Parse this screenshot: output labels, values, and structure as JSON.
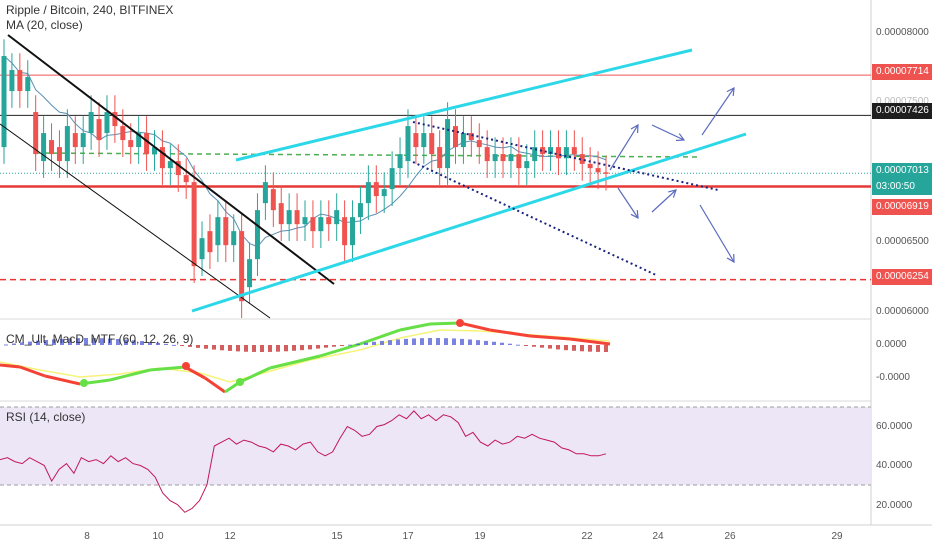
{
  "header": {
    "title": "Ripple / Bitcoin, 240, BITFINEX",
    "ma_label": "MA (20, close)"
  },
  "macd_pane": {
    "label": "CM_Ult_MacD_MTF (60, 12, 26, 9)"
  },
  "rsi_pane": {
    "label": "RSI (14, close)"
  },
  "colors": {
    "candle_up": "#26a69a",
    "candle_down": "#ef5350",
    "channel": "#2cd8e8",
    "resistance": "#ef5350",
    "support_dashed": "#e53935",
    "ma_line": "#5b8fb4",
    "macd_up": "#66e046",
    "macd_down": "#f44336",
    "signal": "#f5f37a",
    "rsi_line": "#c2185b",
    "rsi_band": "#ede7f6"
  },
  "price_axis": {
    "ticks": [
      "0.00008000",
      "0.00007500",
      "0.00006500",
      "0.00006000"
    ],
    "tags": [
      {
        "value": "0.00007714",
        "kind": "red-line"
      },
      {
        "value": "0.00007426",
        "kind": "black-line"
      },
      {
        "value": "0.00007013",
        "kind": "last-price"
      },
      {
        "value": "03:00:50",
        "kind": "countdown"
      },
      {
        "value": "0.00006919",
        "kind": "red-line"
      },
      {
        "value": "0.00006254",
        "kind": "red-line"
      }
    ]
  },
  "macd_axis": {
    "ticks": [
      "0.0000",
      "-0.0000"
    ]
  },
  "rsi_axis": {
    "ticks": [
      "60.0000",
      "40.0000",
      "20.0000"
    ]
  },
  "time_axis": {
    "ticks": [
      "8",
      "10",
      "12",
      "15",
      "17",
      "19",
      "22",
      "24",
      "26",
      "29"
    ]
  },
  "chart_data": {
    "type": "candlestick",
    "symbol": "Ripple / Bitcoin",
    "interval": "240",
    "exchange": "BITFINEX",
    "y_range": [
      5.98e-05,
      8.25e-05
    ],
    "candles_approx": [
      [
        7.2,
        7.85
      ],
      [
        7.6,
        7.75
      ],
      [
        7.75,
        7.6
      ],
      [
        7.6,
        7.7
      ],
      [
        7.45,
        7.15
      ],
      [
        7.1,
        7.3
      ],
      [
        7.25,
        7.15
      ],
      [
        7.2,
        7.1
      ],
      [
        7.1,
        7.35
      ],
      [
        7.3,
        7.2
      ],
      [
        7.2,
        7.3
      ],
      [
        7.3,
        7.45
      ],
      [
        7.4,
        7.25
      ],
      [
        7.3,
        7.45
      ],
      [
        7.45,
        7.35
      ],
      [
        7.35,
        7.25
      ],
      [
        7.25,
        7.2
      ],
      [
        7.2,
        7.3
      ],
      [
        7.3,
        7.15
      ],
      [
        7.15,
        7.2
      ],
      [
        7.2,
        7.05
      ],
      [
        7.05,
        7.1
      ],
      [
        7.1,
        7.0
      ],
      [
        7.0,
        6.95
      ],
      [
        6.95,
        6.35
      ],
      [
        6.4,
        6.55
      ],
      [
        6.6,
        6.45
      ],
      [
        6.5,
        6.7
      ],
      [
        6.7,
        6.5
      ],
      [
        6.5,
        6.6
      ],
      [
        6.6,
        6.1
      ],
      [
        6.2,
        6.4
      ],
      [
        6.4,
        6.75
      ],
      [
        6.8,
        6.95
      ],
      [
        6.9,
        6.75
      ],
      [
        6.8,
        6.65
      ],
      [
        6.65,
        6.75
      ],
      [
        6.75,
        6.65
      ],
      [
        6.65,
        6.7
      ],
      [
        6.7,
        6.6
      ],
      [
        6.6,
        6.7
      ],
      [
        6.7,
        6.65
      ],
      [
        6.65,
        6.75
      ],
      [
        6.7,
        6.5
      ],
      [
        6.5,
        6.7
      ],
      [
        6.7,
        6.8
      ],
      [
        6.8,
        6.95
      ],
      [
        6.95,
        6.85
      ],
      [
        6.85,
        6.9
      ],
      [
        6.9,
        7.05
      ],
      [
        7.05,
        7.15
      ],
      [
        7.1,
        7.35
      ],
      [
        7.3,
        7.2
      ],
      [
        7.2,
        7.3
      ],
      [
        7.3,
        7.15
      ],
      [
        7.2,
        7.05
      ],
      [
        7.05,
        7.4
      ],
      [
        7.35,
        7.2
      ],
      [
        7.2,
        7.3
      ],
      [
        7.3,
        7.25
      ],
      [
        7.25,
        7.2
      ],
      [
        7.2,
        7.1
      ],
      [
        7.1,
        7.15
      ],
      [
        7.15,
        7.1
      ],
      [
        7.1,
        7.15
      ],
      [
        7.15,
        7.05
      ],
      [
        7.05,
        7.1
      ],
      [
        7.1,
        7.2
      ],
      [
        7.2,
        7.15
      ],
      [
        7.15,
        7.2
      ],
      [
        7.2,
        7.12
      ],
      [
        7.12,
        7.2
      ],
      [
        7.2,
        7.15
      ],
      [
        7.15,
        7.08
      ],
      [
        7.08,
        7.05
      ],
      [
        7.05,
        7.02
      ],
      [
        7.02,
        7.01
      ]
    ],
    "horizontal_levels": [
      7.714e-05,
      7.426e-05,
      7.013e-05,
      6.919e-05,
      6.254e-05
    ],
    "rsi_values": [
      43,
      44,
      42,
      41,
      44,
      42,
      40,
      32,
      38,
      41,
      36,
      44,
      42,
      43,
      41,
      45,
      42,
      44,
      41,
      40,
      38,
      34,
      26,
      22,
      20,
      16,
      18,
      22,
      30,
      50,
      52,
      54,
      51,
      53,
      52,
      50,
      49,
      47,
      51,
      50,
      48,
      51,
      52,
      47,
      45,
      47,
      54,
      60,
      58,
      55,
      56,
      60,
      61,
      63,
      66,
      64,
      68,
      64,
      66,
      63,
      66,
      65,
      62,
      55,
      57,
      52,
      50,
      53,
      51,
      52,
      55,
      54,
      56,
      54,
      53,
      52,
      49,
      48,
      46,
      46,
      45,
      45,
      46
    ],
    "rsi_band": [
      30,
      70
    ]
  }
}
